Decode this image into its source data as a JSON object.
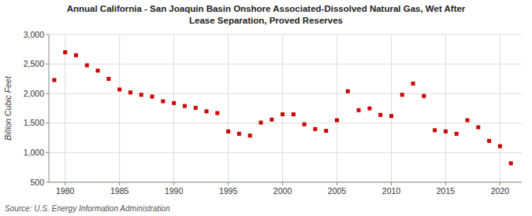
{
  "chart_data": {
    "type": "scatter",
    "title": "Annual California - San Joaquin Basin Onshore Associated-Dissolved Natural Gas, Wet After\nLease Separation, Proved Reserves",
    "ylabel": "Billion Cubic Feet",
    "source": "Source: U.S. Energy Information Administration",
    "color": "#cc0000",
    "marker": "square",
    "grid": true,
    "x": [
      1979,
      1980,
      1981,
      1982,
      1983,
      1984,
      1985,
      1986,
      1987,
      1988,
      1989,
      1990,
      1991,
      1992,
      1993,
      1994,
      1995,
      1996,
      1997,
      1998,
      1999,
      2000,
      2001,
      2002,
      2003,
      2004,
      2005,
      2006,
      2007,
      2008,
      2009,
      2010,
      2011,
      2012,
      2013,
      2014,
      2015,
      2016,
      2017,
      2018,
      2019,
      2020,
      2021
    ],
    "values": [
      2230,
      2700,
      2650,
      2480,
      2390,
      2250,
      2070,
      2020,
      1980,
      1950,
      1870,
      1840,
      1790,
      1760,
      1700,
      1670,
      1360,
      1320,
      1290,
      1510,
      1560,
      1650,
      1650,
      1480,
      1400,
      1370,
      1550,
      2040,
      1720,
      1750,
      1640,
      1620,
      1980,
      2170,
      1960,
      1380,
      1360,
      1320,
      1550,
      1430,
      1200,
      1110,
      820
    ],
    "xlim": [
      1978.5,
      2022
    ],
    "ylim": [
      500,
      3000
    ],
    "xticks": [
      1980,
      1985,
      1990,
      1995,
      2000,
      2005,
      2010,
      2015,
      2020
    ],
    "yticks": [
      500,
      {
        "value": 1000,
        "label": "1,000"
      },
      {
        "value": 1500,
        "label": "1,500"
      },
      {
        "value": 2000,
        "label": "2,000"
      },
      {
        "value": 2500,
        "label": "2,500"
      },
      {
        "value": 3000,
        "label": "3,000"
      }
    ]
  }
}
